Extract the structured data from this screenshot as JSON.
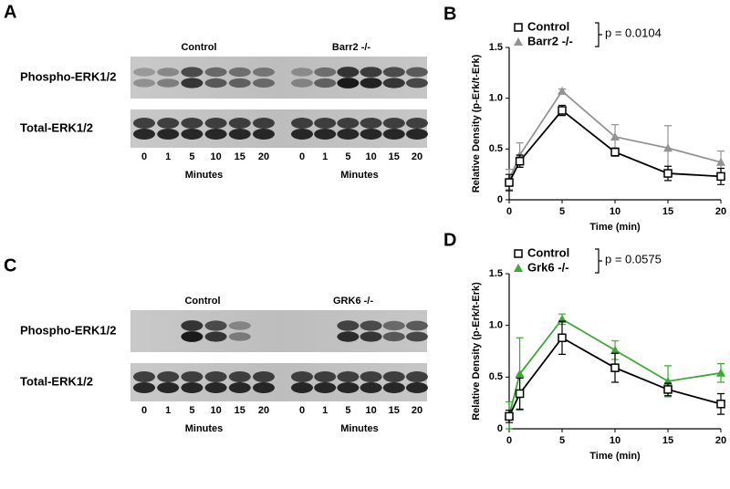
{
  "panels": [
    {
      "letter": "A",
      "rows": [
        "Phospho-ERK1/2",
        "Total-ERK1/2"
      ],
      "groups": [
        {
          "name": "Control",
          "lanes": [
            "0",
            "1",
            "5",
            "10",
            "15",
            "20"
          ],
          "axis_label": "Minutes"
        },
        {
          "name": "Barr2 -/-",
          "lanes": [
            "0",
            "1",
            "5",
            "10",
            "15",
            "20"
          ],
          "axis_label": "Minutes"
        }
      ]
    },
    {
      "letter": "C",
      "rows": [
        "Phospho-ERK1/2",
        "Total-ERK1/2"
      ],
      "groups": [
        {
          "name": "Control",
          "lanes": [
            "0",
            "1",
            "5",
            "10",
            "15",
            "20"
          ],
          "axis_label": "Minutes"
        },
        {
          "name": "GRK6 -/-",
          "lanes": [
            "0",
            "1",
            "5",
            "10",
            "15",
            "20"
          ],
          "axis_label": "Minutes"
        }
      ]
    }
  ],
  "chart_data": [
    {
      "type": "line",
      "panel_label": "B",
      "xlabel": "Time  (min)",
      "ylabel": "Relative Density (p-Erk/t-Erk)",
      "x": [
        0,
        1,
        5,
        10,
        15,
        20
      ],
      "xlim": [
        0,
        20
      ],
      "xticks": [
        0,
        5,
        10,
        15,
        20
      ],
      "ylim": [
        0,
        1.5
      ],
      "yticks": [
        0,
        0.5,
        {
          "value": 1,
          "label": "1.0"
        },
        1.5
      ],
      "legend": "upper left",
      "annotation": "p = 0.0104",
      "series": [
        {
          "name": "Control",
          "color": "#000000",
          "marker": "open-square",
          "values": [
            0.17,
            0.38,
            0.88,
            0.47,
            0.26,
            0.23
          ],
          "errors": [
            0.08,
            0.06,
            0.05,
            0.04,
            0.07,
            0.08
          ]
        },
        {
          "name": "Barr2 -/-",
          "color": "#939393",
          "marker": "triangle",
          "values": [
            0.2,
            0.44,
            1.07,
            0.62,
            0.51,
            0.37
          ],
          "errors": [
            0.1,
            0.12,
            0.02,
            0.12,
            0.22,
            0.11
          ]
        }
      ]
    },
    {
      "type": "line",
      "panel_label": "D",
      "xlabel": "Time  (min)",
      "ylabel": "Relative Density (p-Erk/t-Erk)",
      "x": [
        0,
        1,
        5,
        10,
        15,
        20
      ],
      "xlim": [
        0,
        20
      ],
      "xticks": [
        0,
        5,
        10,
        15,
        20
      ],
      "ylim": [
        0,
        1.5
      ],
      "yticks": [
        0,
        0.5,
        {
          "value": 1,
          "label": "1.0"
        },
        1.5
      ],
      "legend": "upper left",
      "annotation": "p = 0.0575",
      "series": [
        {
          "name": "Control",
          "color": "#000000",
          "marker": "open-square",
          "values": [
            0.12,
            0.34,
            0.88,
            0.59,
            0.38,
            0.24
          ],
          "errors": [
            0.06,
            0.15,
            0.16,
            0.14,
            0.06,
            0.1
          ]
        },
        {
          "name": "Grk6 -/-",
          "color": "#3aaa35",
          "marker": "triangle",
          "values": [
            0.13,
            0.53,
            1.06,
            0.76,
            0.46,
            0.54
          ],
          "errors": [
            0.13,
            0.35,
            0.05,
            0.09,
            0.15,
            0.09
          ]
        }
      ]
    }
  ]
}
